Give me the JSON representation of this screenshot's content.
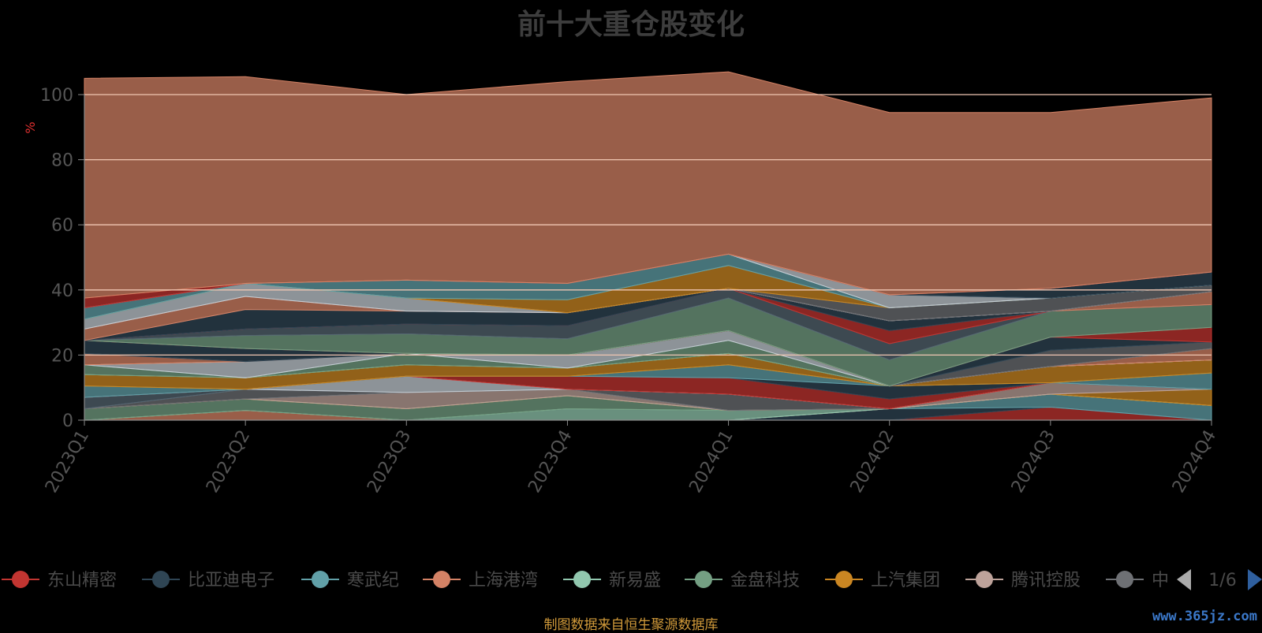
{
  "chart_data": {
    "type": "area",
    "stacked": true,
    "title": "前十大重仓股变化",
    "ylabel": "%",
    "xlabel": "",
    "ylim": [
      0,
      100
    ],
    "yticks": [
      0,
      20,
      40,
      60,
      80,
      100
    ],
    "grid": true,
    "legend_position": "bottom",
    "legend_page": "1/6",
    "categories": [
      "2023Q1",
      "2023Q2",
      "2023Q3",
      "2023Q4",
      "2024Q1",
      "2024Q2",
      "2024Q3",
      "2024Q4"
    ],
    "series": [
      {
        "name": "东山精密",
        "color": "#c23531",
        "values": [
          0,
          0,
          0,
          0,
          0,
          0,
          4,
          0
        ],
        "legend": true
      },
      {
        "name": "比亚迪电子",
        "color": "#2f4554",
        "values": [
          0,
          0,
          0,
          0,
          0,
          3.5,
          0,
          0
        ],
        "legend": true
      },
      {
        "name": "寒武纪",
        "color": "#61a0a8",
        "values": [
          0,
          0,
          0,
          0,
          0,
          0,
          4,
          4.5
        ],
        "legend": true
      },
      {
        "name": "上海港湾",
        "color": "#d48265",
        "values": [
          0,
          3,
          0,
          0,
          0,
          0,
          0,
          0
        ],
        "legend": true
      },
      {
        "name": "新易盛",
        "color": "#91c7ae",
        "values": [
          0,
          0,
          0,
          3.5,
          3,
          0,
          0,
          0
        ],
        "legend": true
      },
      {
        "name": "金盘科技",
        "color": "#749f83",
        "values": [
          3.5,
          3.5,
          3.5,
          4,
          0,
          0,
          0,
          0
        ],
        "legend": true
      },
      {
        "name": "上汽集团",
        "color": "#ca8622",
        "values": [
          0,
          0,
          0,
          0,
          0,
          0,
          0,
          5
        ],
        "legend": true
      },
      {
        "name": "腾讯控股",
        "color": "#bda29a",
        "values": [
          0,
          0,
          5,
          2,
          0,
          0,
          3.5,
          0
        ],
        "legend": true
      },
      {
        "name": "中",
        "color": "#6e7074",
        "values": [
          0,
          3,
          0,
          0,
          5,
          0,
          0,
          0
        ],
        "legend": true
      },
      {
        "name": "",
        "color": "#546570",
        "values": [
          3.5,
          0,
          0,
          0,
          0,
          0,
          0,
          0
        ]
      },
      {
        "name": "",
        "color": "#c4ccd3",
        "values": [
          0,
          0,
          5,
          0,
          0,
          0,
          0,
          0
        ]
      },
      {
        "name": "",
        "color": "#c23531",
        "values": [
          0,
          0,
          0,
          4,
          5,
          3,
          0,
          0
        ]
      },
      {
        "name": "",
        "color": "#2f4554",
        "values": [
          0,
          0,
          0,
          0,
          0,
          4,
          0,
          0
        ]
      },
      {
        "name": "",
        "color": "#61a0a8",
        "values": [
          3.5,
          0,
          0,
          0,
          4,
          0,
          0,
          5
        ]
      },
      {
        "name": "",
        "color": "#ca8622",
        "values": [
          3.5,
          3.5,
          3.5,
          2.5,
          3.5,
          0,
          5,
          4
        ]
      },
      {
        "name": "",
        "color": "#91c7ae",
        "values": [
          0,
          0,
          0,
          0,
          0,
          0,
          0,
          0
        ]
      },
      {
        "name": "",
        "color": "#749f83",
        "values": [
          3,
          0,
          3.5,
          0,
          4,
          0,
          0,
          0
        ]
      },
      {
        "name": "",
        "color": "#c4ccd3",
        "values": [
          0,
          5,
          0,
          4,
          3,
          0,
          0,
          0
        ]
      },
      {
        "name": "",
        "color": "#d48265",
        "values": [
          3.5,
          0,
          0,
          0,
          0,
          0,
          0,
          3.5
        ]
      },
      {
        "name": "",
        "color": "#6e7074",
        "values": [
          0,
          0,
          0,
          0,
          0,
          0,
          5,
          2
        ]
      },
      {
        "name": "",
        "color": "#2f4554",
        "values": [
          4,
          4,
          0,
          0,
          0,
          0,
          4,
          0
        ]
      },
      {
        "name": "",
        "color": "#c23531",
        "values": [
          0,
          0,
          0,
          0,
          0,
          0,
          0,
          4.5
        ]
      },
      {
        "name": "",
        "color": "#749f83",
        "values": [
          0,
          4,
          6,
          5,
          10,
          8,
          8,
          7
        ]
      },
      {
        "name": "",
        "color": "#546570",
        "values": [
          0,
          2,
          3,
          4,
          3,
          5,
          0,
          0
        ]
      },
      {
        "name": "",
        "color": "#c23531",
        "values": [
          0,
          0,
          0,
          0,
          0,
          4,
          0,
          0
        ]
      },
      {
        "name": "",
        "color": "#2f4554",
        "values": [
          0,
          6,
          4,
          4,
          0,
          3,
          0,
          0
        ]
      },
      {
        "name": "",
        "color": "#d48265",
        "values": [
          3.5,
          4,
          0,
          0,
          0,
          0,
          0,
          4
        ]
      },
      {
        "name": "",
        "color": "#c4ccd3",
        "values": [
          3,
          4,
          4,
          0,
          0,
          0,
          0,
          0
        ]
      },
      {
        "name": "",
        "color": "#6e7074",
        "values": [
          0,
          0,
          0,
          0,
          0,
          4,
          4,
          2
        ]
      },
      {
        "name": "",
        "color": "#ca8622",
        "values": [
          0,
          0,
          0,
          4,
          7,
          0,
          0,
          0
        ]
      },
      {
        "name": "",
        "color": "#61a0a8",
        "values": [
          3.5,
          0,
          5.5,
          5,
          3.5,
          0,
          0,
          0
        ]
      },
      {
        "name": "",
        "color": "#c4ccd3",
        "values": [
          0,
          0,
          0,
          0,
          0,
          4,
          0,
          0
        ]
      },
      {
        "name": "",
        "color": "#2f4554",
        "values": [
          0,
          0,
          0,
          0,
          0,
          0,
          3,
          4
        ]
      },
      {
        "name": "",
        "color": "#c23531",
        "values": [
          3,
          0,
          0,
          0,
          0,
          0,
          0,
          0
        ]
      },
      {
        "name": "",
        "color": "#d48265",
        "values": [
          67.5,
          63.5,
          57,
          62,
          56,
          56,
          54,
          53.5
        ]
      }
    ]
  },
  "source_note": "制图数据来自恒生聚源数据库",
  "watermark": "www.365jz.com"
}
